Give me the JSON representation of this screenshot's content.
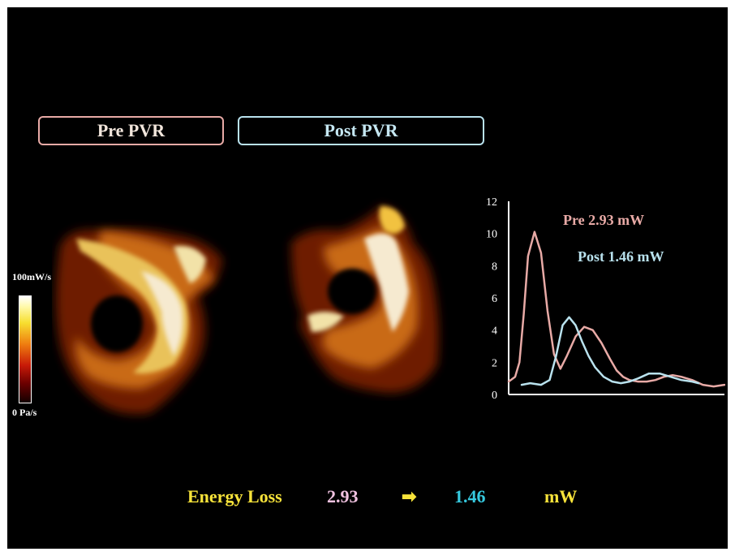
{
  "tabs": {
    "pre": "Pre PVR",
    "post": "Post PVR"
  },
  "colorbar": {
    "max_label": "100mW/s",
    "min_label": "0 Pa/s"
  },
  "energy_loss": {
    "label": "Energy Loss",
    "pre": "2.93",
    "arrow": "➡",
    "post": "1.46",
    "unit": "mW"
  },
  "chart_data": {
    "type": "line",
    "ylim": [
      0,
      12
    ],
    "yticks": [
      "0",
      "2",
      "4",
      "6",
      "8",
      "10",
      "12"
    ],
    "annotations": {
      "pre": "Pre 2.93 mW",
      "post": "Post 1.46 mW"
    },
    "series": [
      {
        "color": "#e8aaa6",
        "x": [
          0,
          3,
          5,
          7,
          9,
          12,
          15,
          18,
          21,
          24,
          27,
          31,
          35,
          39,
          43,
          47,
          50,
          53,
          56,
          60,
          64,
          68,
          72,
          76,
          80,
          85,
          90,
          95,
          100
        ],
        "values": [
          0.8,
          1.1,
          2.0,
          5.0,
          8.6,
          10.1,
          8.8,
          5.2,
          2.5,
          1.6,
          2.4,
          3.6,
          4.2,
          4.0,
          3.2,
          2.2,
          1.5,
          1.1,
          0.9,
          0.8,
          0.8,
          0.9,
          1.1,
          1.2,
          1.1,
          0.9,
          0.6,
          0.5,
          0.6
        ]
      },
      {
        "color": "#b9e2ee",
        "x": [
          6,
          10,
          15,
          19,
          22,
          25,
          28,
          31,
          34,
          37,
          40,
          44,
          48,
          52,
          56,
          60,
          65,
          70,
          75,
          80,
          85,
          88
        ],
        "values": [
          0.6,
          0.7,
          0.6,
          0.9,
          2.4,
          4.3,
          4.8,
          4.3,
          3.3,
          2.4,
          1.7,
          1.1,
          0.8,
          0.7,
          0.8,
          1.0,
          1.3,
          1.3,
          1.1,
          0.9,
          0.8,
          0.7
        ]
      }
    ]
  }
}
